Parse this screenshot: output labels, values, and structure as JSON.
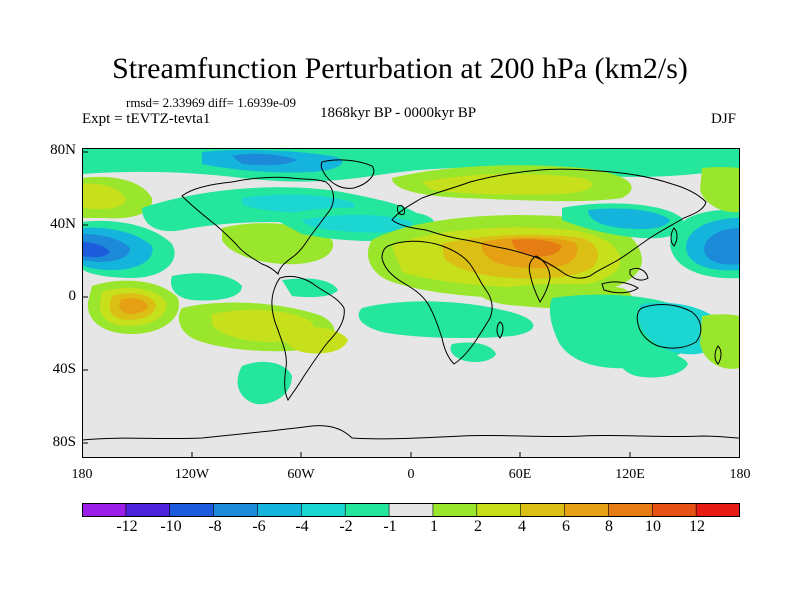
{
  "header": {
    "title": "Streamfunction Perturbation at 200 hPa (km2/s)",
    "stats": "rmsd= 2.33969  diff= 1.6939e-09",
    "experiment": "Expt = tEVTZ-tevta1",
    "period": "1868kyr BP - 0000kyr BP",
    "season": "DJF"
  },
  "axes": {
    "lat_labels": [
      "80N",
      "40N",
      "0",
      "40S",
      "80S"
    ],
    "lon_labels": [
      "180",
      "120W",
      "60W",
      "0",
      "60E",
      "120E",
      "180"
    ]
  },
  "colorbar": {
    "labels": [
      "-12",
      "-10",
      "-8",
      "-6",
      "-4",
      "-2",
      "-1",
      "1",
      "2",
      "4",
      "6",
      "8",
      "10",
      "12"
    ],
    "colors": [
      "#9b1fe6",
      "#4b24dc",
      "#1c5cdc",
      "#1c8ad8",
      "#14b4dc",
      "#1cd6d2",
      "#24e69c",
      "#e6e6e6",
      "#9ae62c",
      "#c6e01c",
      "#dcbf14",
      "#e6a014",
      "#e67c14",
      "#e65214",
      "#e61c14"
    ]
  },
  "colors": {
    "neutral": "#e6e6e6",
    "coast": "#000000"
  }
}
